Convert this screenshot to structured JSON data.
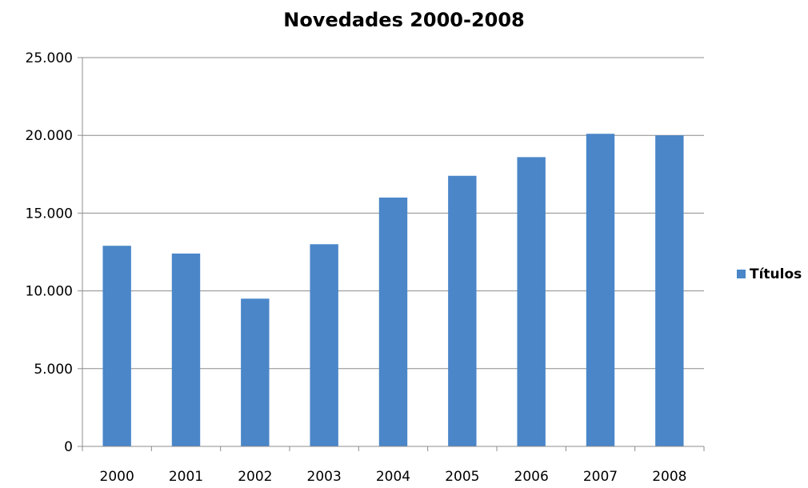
{
  "chart_data": {
    "type": "bar",
    "title": "Novedades 2000-2008",
    "xlabel": "",
    "ylabel": "",
    "categories": [
      "2000",
      "2001",
      "2002",
      "2003",
      "2004",
      "2005",
      "2006",
      "2007",
      "2008"
    ],
    "series": [
      {
        "name": "Títulos",
        "values": [
          12900,
          12400,
          9500,
          13000,
          16000,
          17400,
          18600,
          20100,
          20000
        ],
        "color": "#4a86c8"
      }
    ],
    "ylim": [
      0,
      25000
    ],
    "y_ticks": [
      0,
      5000,
      10000,
      15000,
      20000,
      25000
    ],
    "y_tick_labels": [
      "0",
      "5.000",
      "10.000",
      "15.000",
      "20.000",
      "25.000"
    ],
    "grid": true,
    "legend_position": "right"
  }
}
